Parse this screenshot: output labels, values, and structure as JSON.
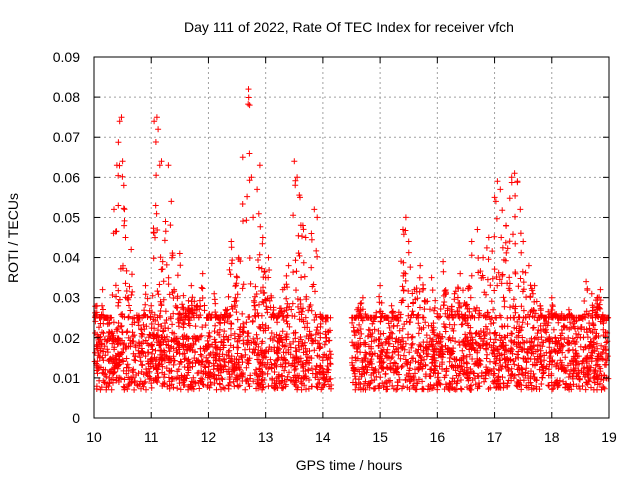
{
  "chart_data": {
    "type": "scatter",
    "title": "Day 111 of 2022, Rate Of TEC Index for receiver vfch",
    "xlabel": "GPS time / hours",
    "ylabel": "ROTI / TECUs",
    "xlim": [
      10,
      19
    ],
    "ylim": [
      0,
      0.09
    ],
    "x_ticks": [
      10,
      11,
      12,
      13,
      14,
      15,
      16,
      17,
      18,
      19
    ],
    "x_tick_labels": [
      "10",
      "11",
      "12",
      "13",
      "14",
      "15",
      "16",
      "17",
      "18",
      "19"
    ],
    "y_ticks": [
      0,
      0.01,
      0.02,
      0.03,
      0.04,
      0.05,
      0.06,
      0.07,
      0.08,
      0.09
    ],
    "y_tick_labels": [
      "0",
      "0.01",
      "0.02",
      "0.03",
      "0.04",
      "0.05",
      "0.06",
      "0.07",
      "0.08",
      "0.09"
    ],
    "grid": true,
    "marker": "+",
    "color": "#ff0000",
    "data_gap": [
      14.15,
      14.5
    ],
    "series": [
      {
        "name": "ROTI",
        "x": [
          10.05,
          10.1,
          10.15,
          10.2,
          10.3,
          10.35,
          10.4,
          10.45,
          10.48,
          10.5,
          10.52,
          10.55,
          10.6,
          10.65,
          10.7,
          10.8,
          10.9,
          11.0,
          11.05,
          11.1,
          11.12,
          11.15,
          11.18,
          11.2,
          11.25,
          11.3,
          11.35,
          11.4,
          11.5,
          11.6,
          11.7,
          11.8,
          11.9,
          12.0,
          12.1,
          12.2,
          12.3,
          12.4,
          12.5,
          12.6,
          12.7,
          12.72,
          12.75,
          12.78,
          12.8,
          12.85,
          12.9,
          12.95,
          13.0,
          13.05,
          13.1,
          13.2,
          13.3,
          13.4,
          13.5,
          13.55,
          13.6,
          13.65,
          13.7,
          13.8,
          13.85,
          13.9,
          14.0,
          14.05,
          14.1,
          14.55,
          14.6,
          14.7,
          14.8,
          14.9,
          15.0,
          15.1,
          15.2,
          15.3,
          15.4,
          15.45,
          15.5,
          15.6,
          15.7,
          15.8,
          15.9,
          16.0,
          16.1,
          16.2,
          16.3,
          16.4,
          16.5,
          16.6,
          16.7,
          16.8,
          16.9,
          17.0,
          17.05,
          17.1,
          17.2,
          17.3,
          17.35,
          17.4,
          17.45,
          17.5,
          17.6,
          17.7,
          17.8,
          17.9,
          18.0,
          18.1,
          18.2,
          18.3,
          18.4,
          18.5,
          18.6,
          18.7,
          18.8,
          18.85,
          18.9,
          18.95
        ],
        "values": [
          0.028,
          0.015,
          0.032,
          0.012,
          0.021,
          0.052,
          0.063,
          0.074,
          0.075,
          0.064,
          0.058,
          0.045,
          0.03,
          0.042,
          0.025,
          0.018,
          0.033,
          0.028,
          0.074,
          0.075,
          0.072,
          0.063,
          0.064,
          0.039,
          0.049,
          0.063,
          0.054,
          0.032,
          0.041,
          0.026,
          0.033,
          0.028,
          0.036,
          0.018,
          0.031,
          0.022,
          0.027,
          0.044,
          0.035,
          0.065,
          0.082,
          0.078,
          0.06,
          0.05,
          0.028,
          0.057,
          0.063,
          0.045,
          0.035,
          0.04,
          0.03,
          0.025,
          0.032,
          0.038,
          0.064,
          0.06,
          0.055,
          0.048,
          0.045,
          0.046,
          0.052,
          0.05,
          0.015,
          0.024,
          0.012,
          0.018,
          0.027,
          0.03,
          0.022,
          0.025,
          0.033,
          0.019,
          0.028,
          0.023,
          0.047,
          0.05,
          0.044,
          0.032,
          0.038,
          0.029,
          0.035,
          0.026,
          0.039,
          0.025,
          0.031,
          0.036,
          0.028,
          0.044,
          0.047,
          0.04,
          0.045,
          0.055,
          0.059,
          0.057,
          0.048,
          0.06,
          0.061,
          0.059,
          0.052,
          0.044,
          0.038,
          0.033,
          0.028,
          0.022,
          0.03,
          0.025,
          0.018,
          0.027,
          0.024,
          0.02,
          0.034,
          0.031,
          0.03,
          0.032,
          0.022,
          0.016
        ],
        "baseline_band": [
          0.005,
          0.025
        ]
      }
    ]
  }
}
